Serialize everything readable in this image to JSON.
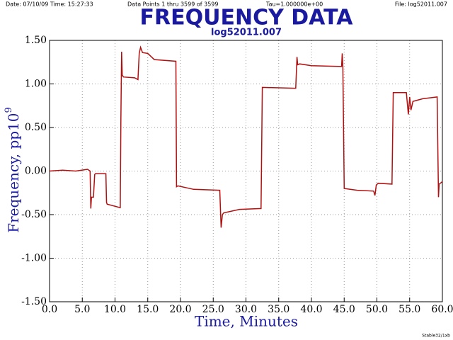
{
  "header": {
    "date_time": "Date: 07/10/09  Time: 15:27:33",
    "points": "Data Points 1 thru 3599 of 3599",
    "tau": "Tau=1.000000e+00",
    "file": "File: log52011.007"
  },
  "footer": "Stable32/1xb",
  "chart_data": {
    "type": "line",
    "title": "FREQUENCY DATA",
    "subtitle": "log52011.007",
    "xlabel": "Time, Minutes",
    "ylabel": "Frequency, pp10",
    "ylabel_exponent": "9",
    "grid": true,
    "xlim": [
      0,
      60
    ],
    "ylim": [
      -1.5,
      1.5
    ],
    "xticks": [
      {
        "value": 0,
        "label": "0.0"
      },
      {
        "value": 5,
        "label": "5.0"
      },
      {
        "value": 10,
        "label": "10.0"
      },
      {
        "value": 15,
        "label": "15.0"
      },
      {
        "value": 20,
        "label": "20.0"
      },
      {
        "value": 25,
        "label": "25.0"
      },
      {
        "value": 30,
        "label": "30.0"
      },
      {
        "value": 35,
        "label": "35.0"
      },
      {
        "value": 40,
        "label": "40.0"
      },
      {
        "value": 45,
        "label": "45.0"
      },
      {
        "value": 50,
        "label": "50.0"
      },
      {
        "value": 55,
        "label": "55.0"
      },
      {
        "value": 60,
        "label": "60.0"
      }
    ],
    "yticks": [
      {
        "value": 1.5,
        "label": "1.50"
      },
      {
        "value": 1,
        "label": "1.00"
      },
      {
        "value": 0.5,
        "label": "0.50"
      },
      {
        "value": 0,
        "label": "0.00"
      },
      {
        "value": -0.5,
        "label": "-0.50"
      },
      {
        "value": -1,
        "label": "-1.00"
      },
      {
        "value": -1.5,
        "label": "-1.50"
      }
    ],
    "series": [
      {
        "name": "Frequency",
        "color": "#b01010",
        "x": [
          0,
          2,
          4,
          5.8,
          6.2,
          6.3,
          6.4,
          6.7,
          6.9,
          7.0,
          8.6,
          8.7,
          8.8,
          10.8,
          10.9,
          11.0,
          11.1,
          11.3,
          13.0,
          13.5,
          13.7,
          13.9,
          14.2,
          15.0,
          16.0,
          19.3,
          19.4,
          19.6,
          22,
          26.0,
          26.2,
          26.4,
          26.6,
          29,
          32.3,
          32.5,
          37.6,
          37.8,
          37.9,
          38.2,
          40,
          44.6,
          44.7,
          44.8,
          45.0,
          47,
          49.5,
          49.7,
          49.9,
          50.2,
          52.3,
          52.5,
          54.5,
          54.8,
          55.0,
          55.2,
          55.5,
          57,
          59.2,
          59.4,
          59.5,
          59.7,
          60
        ],
        "values": [
          0.0,
          0.01,
          0.0,
          0.02,
          0.0,
          -0.43,
          -0.3,
          -0.3,
          -0.04,
          -0.03,
          -0.03,
          -0.36,
          -0.38,
          -0.42,
          0.6,
          1.37,
          1.1,
          1.08,
          1.07,
          1.05,
          1.35,
          1.42,
          1.36,
          1.35,
          1.28,
          1.26,
          -0.18,
          -0.17,
          -0.21,
          -0.22,
          -0.65,
          -0.5,
          -0.48,
          -0.44,
          -0.43,
          0.96,
          0.95,
          1.31,
          1.22,
          1.23,
          1.21,
          1.2,
          1.35,
          1.19,
          -0.2,
          -0.22,
          -0.23,
          -0.28,
          -0.16,
          -0.14,
          -0.15,
          0.9,
          0.9,
          0.65,
          0.85,
          0.7,
          0.8,
          0.83,
          0.85,
          -0.3,
          -0.15,
          -0.14,
          -0.12
        ]
      }
    ]
  }
}
